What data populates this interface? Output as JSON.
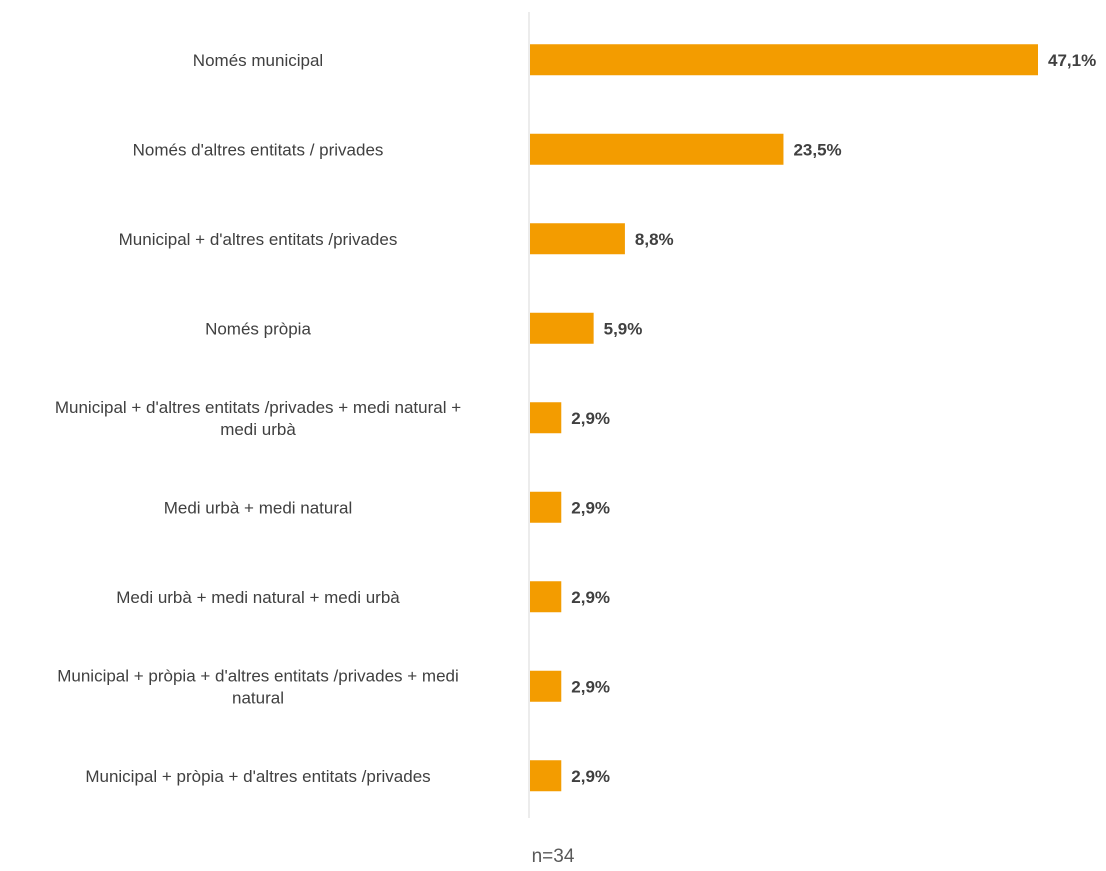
{
  "chart_data": {
    "type": "bar",
    "orientation": "horizontal",
    "categories": [
      [
        "Només municipal"
      ],
      [
        "Només d'altres entitats / privades"
      ],
      [
        "Municipal + d'altres entitats /privades"
      ],
      [
        "Només pròpia"
      ],
      [
        "Municipal + d'altres entitats /privades + medi natural +",
        "medi urbà"
      ],
      [
        "Medi urbà + medi natural"
      ],
      [
        "Medi urbà + medi natural + medi urbà"
      ],
      [
        "Municipal + pròpia + d'altres entitats /privades + medi",
        "natural"
      ],
      [
        "Municipal + pròpia + d'altres entitats /privades"
      ]
    ],
    "values": [
      47.1,
      23.5,
      8.8,
      5.9,
      2.9,
      2.9,
      2.9,
      2.9,
      2.9
    ],
    "value_labels": [
      "47,1%",
      "23,5%",
      "8,8%",
      "5,9%",
      "2,9%",
      "2,9%",
      "2,9%",
      "2,9%",
      "2,9%"
    ],
    "xlim": [
      0,
      47.1
    ],
    "bar_color": "#F39C00",
    "axis_color": "#D9D9D9",
    "grid": false,
    "legend": false
  },
  "footnote": "n=34"
}
